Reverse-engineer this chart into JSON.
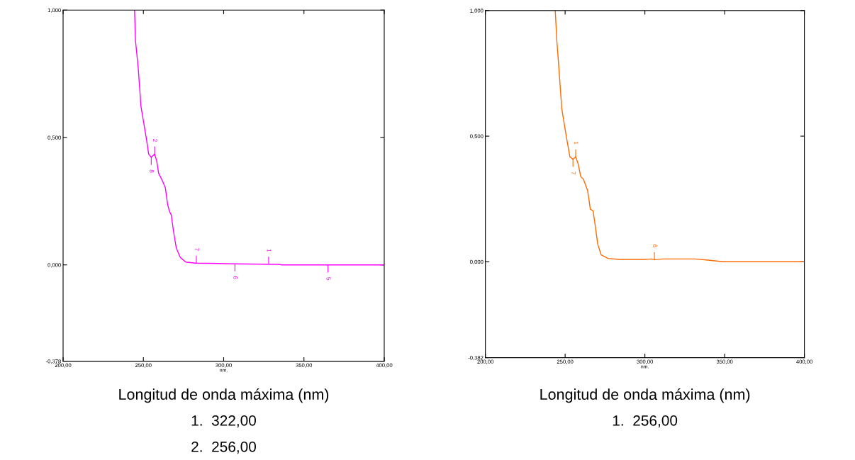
{
  "chart_data": [
    {
      "type": "line",
      "xlabel": "nm.",
      "xlim": [
        200,
        400
      ],
      "ylim": [
        -0.378,
        1.0
      ],
      "xticks": [
        {
          "value": 200,
          "label": "200,00"
        },
        {
          "value": 250,
          "label": "250,00"
        },
        {
          "value": 300,
          "label": "300,00"
        },
        {
          "value": 350,
          "label": "350,00"
        },
        {
          "value": 400,
          "label": "400,00"
        }
      ],
      "yticks": [
        {
          "value": -0.378,
          "label": "-0,378"
        },
        {
          "value": 0,
          "label": "0,000"
        },
        {
          "value": 0.5,
          "label": "0,500"
        },
        {
          "value": 1.0,
          "label": "1,000"
        }
      ],
      "grid": false,
      "marker": "none",
      "line_style": "solid",
      "series": [
        {
          "color": "#ff00ff",
          "x": [
            244.5,
            245.1,
            246.8,
            248.5,
            250.2,
            251.9,
            253.3,
            254.9,
            257.0,
            258.3,
            259.5,
            262.0,
            263.7,
            265.1,
            266.2,
            267.4,
            268.8,
            270.5,
            273.0,
            276.4,
            282.3,
            290.8,
            306.0,
            334.7,
            336.4,
            400
          ],
          "values": [
            1.0,
            0.879,
            0.772,
            0.622,
            0.558,
            0.494,
            0.435,
            0.422,
            0.435,
            0.408,
            0.36,
            0.328,
            0.302,
            0.237,
            0.211,
            0.195,
            0.13,
            0.066,
            0.029,
            0.011,
            0.007,
            0.006,
            0.004,
            0.002,
            0.0,
            0.0
          ]
        }
      ],
      "annotations": [
        {
          "text": "2",
          "x": 257.0,
          "y": 0.435
        },
        {
          "text": "8",
          "x": 254.9,
          "y": 0.422
        },
        {
          "text": "7",
          "x": 283.0,
          "y": 0.007
        },
        {
          "text": "6",
          "x": 307.0,
          "y": 0.004
        },
        {
          "text": "1",
          "x": 328.0,
          "y": 0.003
        },
        {
          "text": "5",
          "x": 365.0,
          "y": 0.0
        },
        "Longitud de onda máxima (nm)",
        "1.  322,00",
        "2.  256,00"
      ]
    },
    {
      "type": "line",
      "xlabel": "nm.",
      "xlim": [
        200,
        400
      ],
      "ylim": [
        -0.382,
        1.0
      ],
      "xticks": [
        {
          "value": 200,
          "label": "200,00"
        },
        {
          "value": 250,
          "label": "250,00"
        },
        {
          "value": 300,
          "label": "300,00"
        },
        {
          "value": 350,
          "label": "350,00"
        },
        {
          "value": 400,
          "label": "400,00"
        }
      ],
      "yticks": [
        {
          "value": -0.382,
          "label": "-0,382"
        },
        {
          "value": 0,
          "label": "0,000"
        },
        {
          "value": 0.5,
          "label": "0,500"
        },
        {
          "value": 1.0,
          "label": "1,000"
        }
      ],
      "grid": false,
      "marker": "none",
      "line_style": "solid",
      "series": [
        {
          "color": "#ff6a00",
          "x": [
            243.8,
            244.8,
            246.2,
            247.9,
            249.6,
            251.3,
            253.0,
            254.9,
            256.6,
            258.1,
            259.8,
            261.5,
            264.1,
            265.8,
            267.5,
            268.7,
            270.4,
            272.6,
            276.9,
            283.8,
            299.1,
            304.3,
            306.0,
            311.1,
            331.6,
            338.5,
            349.6,
            400
          ],
          "values": [
            1.0,
            0.88,
            0.761,
            0.609,
            0.543,
            0.478,
            0.418,
            0.408,
            0.418,
            0.391,
            0.339,
            0.328,
            0.283,
            0.209,
            0.203,
            0.152,
            0.071,
            0.027,
            0.013,
            0.009,
            0.009,
            0.011,
            0.008,
            0.011,
            0.011,
            0.007,
            0.0,
            0.0
          ]
        }
      ],
      "annotations": [
        {
          "text": "1",
          "x": 256.6,
          "y": 0.418
        },
        {
          "text": "7",
          "x": 254.9,
          "y": 0.408
        },
        {
          "text": "6",
          "x": 306.0,
          "y": 0.008
        },
        "Longitud de onda máxima (nm)",
        "1.  256,00"
      ]
    }
  ]
}
